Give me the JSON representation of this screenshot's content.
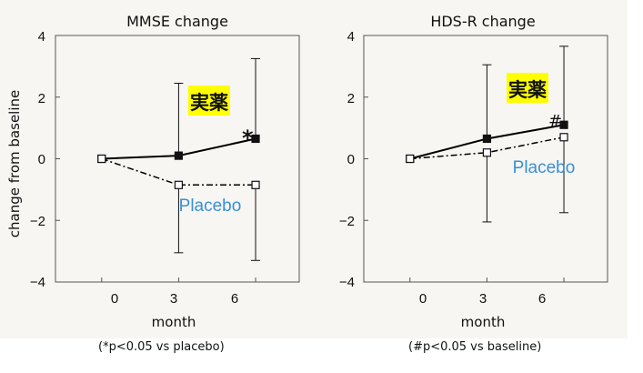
{
  "shared": {
    "ylabel": "change from baseline",
    "xlabel": "month",
    "yticks": [
      "4",
      "2",
      "0",
      "−2",
      "−4"
    ],
    "xticks": [
      "0",
      "3",
      "6"
    ]
  },
  "chart_data": [
    {
      "type": "line",
      "title": "MMSE change",
      "xlabel": "month",
      "ylabel": "change from baseline",
      "x": [
        0,
        3,
        6
      ],
      "xlim": [
        -1.8,
        7.7
      ],
      "ylim": [
        -4,
        4
      ],
      "series": [
        {
          "name": "実薬",
          "values": [
            0,
            0.1,
            0.65
          ],
          "error_upper": [
            0,
            2.45,
            3.25
          ],
          "style": "solid",
          "marker": "filled-square",
          "color": "#000000"
        },
        {
          "name": "Placebo",
          "values": [
            0,
            -0.85,
            -0.85
          ],
          "error_lower": [
            0,
            -3.05,
            -3.3
          ],
          "style": "dashdot",
          "marker": "open-square",
          "color": "#000000"
        }
      ],
      "labels": {
        "drug": "実薬",
        "placebo": "Placebo",
        "significance": "*"
      },
      "note": "(*p<0.05 vs placebo)"
    },
    {
      "type": "line",
      "title": "HDS-R change",
      "xlabel": "month",
      "ylabel": "",
      "x": [
        0,
        3,
        6
      ],
      "xlim": [
        -1.8,
        7.7
      ],
      "ylim": [
        -4,
        4
      ],
      "series": [
        {
          "name": "実薬",
          "values": [
            0,
            0.65,
            1.1
          ],
          "error_upper": [
            0,
            3.05,
            3.65
          ],
          "style": "solid",
          "marker": "filled-square",
          "color": "#000000"
        },
        {
          "name": "Placebo",
          "values": [
            0,
            0.2,
            0.7
          ],
          "error_lower": [
            0,
            -2.05,
            -1.75
          ],
          "style": "dashdot",
          "marker": "open-square",
          "color": "#000000"
        }
      ],
      "labels": {
        "drug": "実薬",
        "placebo": "Placebo",
        "significance": "#"
      },
      "note": "(#p<0.05 vs baseline)"
    }
  ],
  "colors": {
    "highlight": "#ffff00",
    "placebo_label": "#3a8fd6",
    "frame": "#555555",
    "background": "#f7f6f2"
  }
}
